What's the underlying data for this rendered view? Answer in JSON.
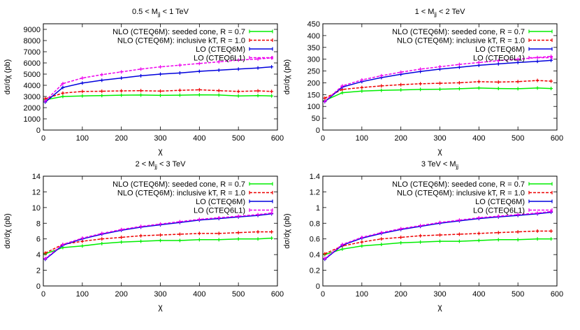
{
  "colors": {
    "nlo_seeded": "#00ee00",
    "nlo_kt": "#ee0000",
    "lo_cteq6m": "#0000dd",
    "lo_cteq6l1": "#ee00ee",
    "frame": "#000000",
    "background": "#ffffff"
  },
  "chart_data": [
    {
      "type": "line",
      "title_parts": [
        "0.5 < M",
        "jj",
        " < 1 TeV"
      ],
      "xlabel": "χ",
      "ylabel": "dσ/dχ (pb)",
      "xlim": [
        0,
        600
      ],
      "ylim": [
        0,
        9500
      ],
      "xticks": [
        0,
        100,
        200,
        300,
        400,
        500,
        600
      ],
      "yticks": [
        0,
        1000,
        2000,
        3000,
        4000,
        5000,
        6000,
        7000,
        8000,
        9000
      ],
      "x": [
        5,
        50,
        100,
        150,
        200,
        250,
        300,
        350,
        400,
        450,
        500,
        550,
        585
      ],
      "series": [
        {
          "name": "NLO (CTEQ6M): seeded cone, R = 0.7",
          "color_key": "nlo_seeded",
          "style": "solid",
          "values": [
            2700,
            3000,
            3050,
            3080,
            3120,
            3130,
            3100,
            3120,
            3150,
            3130,
            3050,
            3080,
            3050
          ]
        },
        {
          "name": "NLO (CTEQ6M): inclusive kT, R = 1.0",
          "color_key": "nlo_kt",
          "style": "dashed",
          "values": [
            2800,
            3300,
            3450,
            3470,
            3500,
            3520,
            3480,
            3550,
            3600,
            3520,
            3450,
            3500,
            3450
          ]
        },
        {
          "name": "LO (CTEQ6M)",
          "color_key": "lo_cteq6m",
          "style": "solid",
          "values": [
            2500,
            3800,
            4200,
            4450,
            4650,
            4850,
            5000,
            5100,
            5250,
            5350,
            5450,
            5550,
            5650
          ]
        },
        {
          "name": "LO (CTEQ6L1)",
          "color_key": "lo_cteq6l1",
          "style": "dashed",
          "values": [
            2600,
            4150,
            4650,
            4950,
            5200,
            5450,
            5650,
            5800,
            5950,
            6100,
            6250,
            6350,
            6450
          ]
        }
      ],
      "legend_position": "top-right"
    },
    {
      "type": "line",
      "title_parts": [
        "1 < M",
        "jj",
        " < 2 TeV"
      ],
      "xlabel": "χ",
      "ylabel": "dσ/dχ (pb)",
      "xlim": [
        0,
        600
      ],
      "ylim": [
        0,
        450
      ],
      "xticks": [
        0,
        100,
        200,
        300,
        400,
        500,
        600
      ],
      "yticks": [
        0,
        50,
        100,
        150,
        200,
        250,
        300,
        350,
        400,
        450
      ],
      "x": [
        5,
        50,
        100,
        150,
        200,
        250,
        300,
        350,
        400,
        450,
        500,
        550,
        585
      ],
      "series": [
        {
          "name": "NLO (CTEQ6M): seeded cone, R = 0.7",
          "color_key": "nlo_seeded",
          "style": "solid",
          "values": [
            125,
            158,
            165,
            168,
            170,
            172,
            173,
            175,
            178,
            176,
            175,
            178,
            176
          ]
        },
        {
          "name": "NLO (CTEQ6M): inclusive kT, R = 1.0",
          "color_key": "nlo_kt",
          "style": "dashed",
          "values": [
            135,
            172,
            180,
            187,
            192,
            196,
            198,
            200,
            205,
            203,
            205,
            210,
            207
          ]
        },
        {
          "name": "LO (CTEQ6M)",
          "color_key": "lo_cteq6m",
          "style": "solid",
          "values": [
            120,
            182,
            205,
            222,
            236,
            248,
            258,
            266,
            274,
            280,
            286,
            291,
            295
          ]
        },
        {
          "name": "LO (CTEQ6L1)",
          "color_key": "lo_cteq6l1",
          "style": "dashed",
          "values": [
            122,
            187,
            212,
            230,
            245,
            258,
            268,
            278,
            286,
            294,
            300,
            307,
            312
          ]
        }
      ],
      "legend_position": "top-right"
    },
    {
      "type": "line",
      "title_parts": [
        "2 < M",
        "jj",
        " < 3 TeV"
      ],
      "xlabel": "χ",
      "ylabel": "dσ/dχ (pb)",
      "xlim": [
        0,
        600
      ],
      "ylim": [
        0,
        14
      ],
      "xticks": [
        0,
        100,
        200,
        300,
        400,
        500,
        600
      ],
      "yticks": [
        0,
        2,
        4,
        6,
        8,
        10,
        12,
        14
      ],
      "x": [
        5,
        50,
        100,
        150,
        200,
        250,
        300,
        350,
        400,
        450,
        500,
        550,
        585
      ],
      "series": [
        {
          "name": "NLO (CTEQ6M): seeded cone, R = 0.7",
          "color_key": "nlo_seeded",
          "style": "solid",
          "values": [
            4.1,
            4.9,
            5.1,
            5.4,
            5.6,
            5.7,
            5.8,
            5.8,
            5.9,
            5.9,
            6.0,
            6.0,
            6.1
          ]
        },
        {
          "name": "NLO (CTEQ6M): inclusive kT, R = 1.0",
          "color_key": "nlo_kt",
          "style": "dashed",
          "values": [
            4.2,
            5.3,
            5.7,
            6.0,
            6.2,
            6.4,
            6.5,
            6.6,
            6.7,
            6.7,
            6.8,
            6.9,
            6.9
          ]
        },
        {
          "name": "LO (CTEQ6M)",
          "color_key": "lo_cteq6m",
          "style": "solid",
          "values": [
            3.4,
            5.2,
            6.0,
            6.6,
            7.1,
            7.5,
            7.8,
            8.1,
            8.4,
            8.6,
            8.8,
            9.0,
            9.2
          ]
        },
        {
          "name": "LO (CTEQ6L1)",
          "color_key": "lo_cteq6l1",
          "style": "dashed",
          "values": [
            3.5,
            5.3,
            6.1,
            6.7,
            7.2,
            7.6,
            7.9,
            8.2,
            8.5,
            8.7,
            8.9,
            9.1,
            9.3
          ]
        }
      ],
      "legend_position": "top-right"
    },
    {
      "type": "line",
      "title_parts": [
        "3 TeV < M",
        "jj",
        ""
      ],
      "xlabel": "χ",
      "ylabel": "dσ/dχ (pb)",
      "xlim": [
        0,
        600
      ],
      "ylim": [
        0,
        1.4
      ],
      "xticks": [
        0,
        100,
        200,
        300,
        400,
        500,
        600
      ],
      "yticks": [
        0,
        0.2,
        0.4,
        0.6,
        0.8,
        1,
        1.2,
        1.4
      ],
      "x": [
        5,
        50,
        100,
        150,
        200,
        250,
        300,
        350,
        400,
        450,
        500,
        550,
        585
      ],
      "series": [
        {
          "name": "NLO (CTEQ6M): seeded cone, R = 0.7",
          "color_key": "nlo_seeded",
          "style": "solid",
          "values": [
            0.4,
            0.47,
            0.51,
            0.53,
            0.55,
            0.56,
            0.57,
            0.57,
            0.58,
            0.59,
            0.59,
            0.6,
            0.6
          ]
        },
        {
          "name": "NLO (CTEQ6M): inclusive kT, R = 1.0",
          "color_key": "nlo_kt",
          "style": "dashed",
          "values": [
            0.41,
            0.51,
            0.56,
            0.6,
            0.62,
            0.64,
            0.65,
            0.66,
            0.67,
            0.68,
            0.69,
            0.7,
            0.7
          ]
        },
        {
          "name": "LO (CTEQ6M)",
          "color_key": "lo_cteq6m",
          "style": "solid",
          "values": [
            0.34,
            0.52,
            0.61,
            0.67,
            0.72,
            0.76,
            0.8,
            0.83,
            0.86,
            0.88,
            0.9,
            0.92,
            0.94
          ]
        },
        {
          "name": "LO (CTEQ6L1)",
          "color_key": "lo_cteq6l1",
          "style": "dashed",
          "values": [
            0.35,
            0.53,
            0.62,
            0.68,
            0.73,
            0.77,
            0.81,
            0.84,
            0.87,
            0.89,
            0.91,
            0.93,
            0.95
          ]
        }
      ],
      "legend_position": "top-right"
    }
  ]
}
